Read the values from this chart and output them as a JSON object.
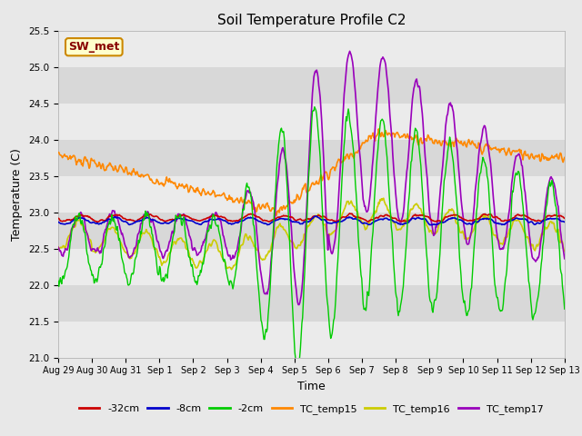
{
  "title": "Soil Temperature Profile C2",
  "xlabel": "Time",
  "ylabel": "Temperature (C)",
  "ylim": [
    21.0,
    25.5
  ],
  "yticks": [
    21.0,
    21.5,
    22.0,
    22.5,
    23.0,
    23.5,
    24.0,
    24.5,
    25.0,
    25.5
  ],
  "bg_color": "#e8e8e8",
  "band_light": "#ebebeb",
  "band_dark": "#d8d8d8",
  "annotation_text": "SW_met",
  "annotation_bg": "#ffffcc",
  "annotation_border": "#cc8800",
  "annotation_text_color": "#880000",
  "series": {
    "neg32cm": {
      "color": "#cc0000",
      "lw": 1.2,
      "label": "-32cm"
    },
    "neg8cm": {
      "color": "#0000cc",
      "lw": 1.2,
      "label": "-8cm"
    },
    "neg2cm": {
      "color": "#00cc00",
      "lw": 1.0,
      "label": "-2cm"
    },
    "TC_temp15": {
      "color": "#ff8800",
      "lw": 1.2,
      "label": "TC_temp15"
    },
    "TC_temp16": {
      "color": "#cccc00",
      "lw": 1.2,
      "label": "TC_temp16"
    },
    "TC_temp17": {
      "color": "#9900bb",
      "lw": 1.2,
      "label": "TC_temp17"
    }
  },
  "xtick_labels": [
    "Aug 29",
    "Aug 30",
    "Aug 31",
    "Sep 1",
    "Sep 2",
    "Sep 3",
    "Sep 4",
    "Sep 5",
    "Sep 6",
    "Sep 7",
    "Sep 8",
    "Sep 9",
    "Sep 10",
    "Sep 11",
    "Sep 12",
    "Sep 13"
  ]
}
